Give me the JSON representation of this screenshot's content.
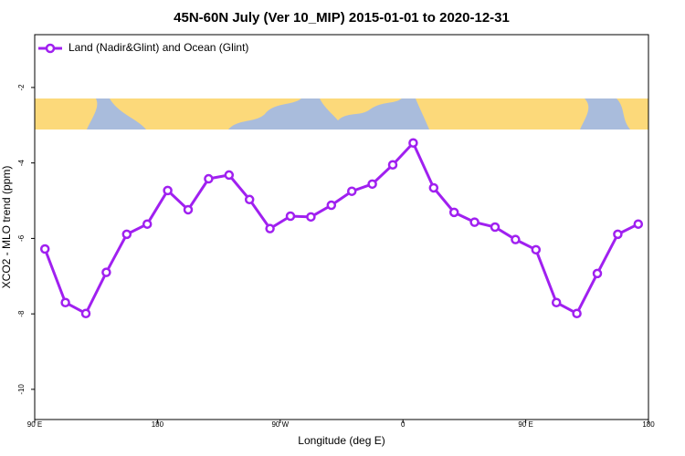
{
  "chart_data": {
    "type": "line",
    "title": "45N-60N July (Ver 10_MIP)   2015-01-01 to 2020-12-31",
    "x_label": "Longitude (deg E)",
    "y_label": "XCO2 - MLO trend (ppm)",
    "x": [
      97.5,
      112.5,
      127.5,
      142.5,
      157.5,
      172.5,
      187.5,
      202.5,
      217.5,
      232.5,
      247.5,
      262.5,
      277.5,
      292.5,
      307.5,
      322.5,
      337.5,
      352.5,
      367.5,
      382.5,
      397.5,
      412.5,
      427.5,
      442.5,
      457.5,
      472.5,
      487.5,
      502.5,
      517.5,
      532.5
    ],
    "series": [
      {
        "name": "Land (Nadir&Glint) and Ocean (Glint)",
        "color": "#a020f0",
        "values": [
          -6.28,
          -7.7,
          -7.99,
          -6.9,
          -5.89,
          -5.62,
          -4.73,
          -5.24,
          -4.42,
          -4.32,
          -4.97,
          -5.74,
          -5.41,
          -5.43,
          -5.12,
          -4.75,
          -4.56,
          -4.05,
          -3.47,
          -4.66,
          -5.31,
          -5.57,
          -5.7,
          -6.03,
          -6.3,
          -7.7,
          -7.99,
          -6.93,
          -5.89,
          -5.62
        ]
      }
    ],
    "xlim": [
      90,
      540
    ],
    "xticks": [
      {
        "value": 90,
        "label": "90 E"
      },
      180,
      {
        "value": 270,
        "label": "90 W"
      },
      {
        "value": 360,
        "label": "0"
      },
      {
        "value": 450,
        "label": "90 E"
      },
      {
        "value": 540,
        "label": "180"
      }
    ],
    "ylim": [
      -10.8,
      -0.6
    ],
    "yticks": [
      -2,
      -4,
      -6,
      -8,
      -10
    ],
    "legend": "top-left"
  }
}
